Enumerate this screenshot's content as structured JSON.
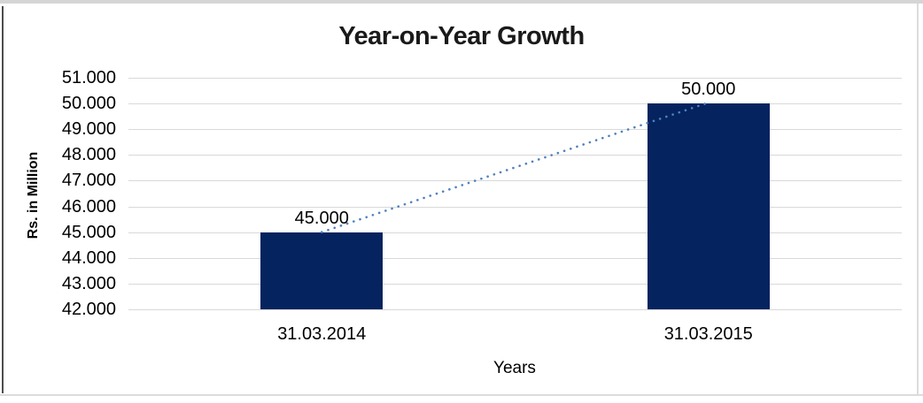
{
  "chart_data": {
    "type": "bar",
    "title": "Year-on-Year Growth",
    "xlabel": "Years",
    "ylabel": "Rs. in Million",
    "categories": [
      "31.03.2014",
      "31.03.2015"
    ],
    "values": [
      45000,
      50000
    ],
    "value_labels": [
      "45.000",
      "50.000"
    ],
    "ylim": [
      42000,
      51000
    ],
    "ytick_step": 1000,
    "ytick_labels": [
      "42.000",
      "43.000",
      "44.000",
      "45.000",
      "46.000",
      "47.000",
      "48.000",
      "49.000",
      "50.000",
      "51.000"
    ],
    "grid": true,
    "legend": "none",
    "colors": {
      "bar": "#04235f",
      "gridline": "#d9d9d9",
      "trendline": "#4f81bd",
      "text": "#000000"
    },
    "trendline": {
      "kind": "linear",
      "style": "dotted"
    }
  }
}
